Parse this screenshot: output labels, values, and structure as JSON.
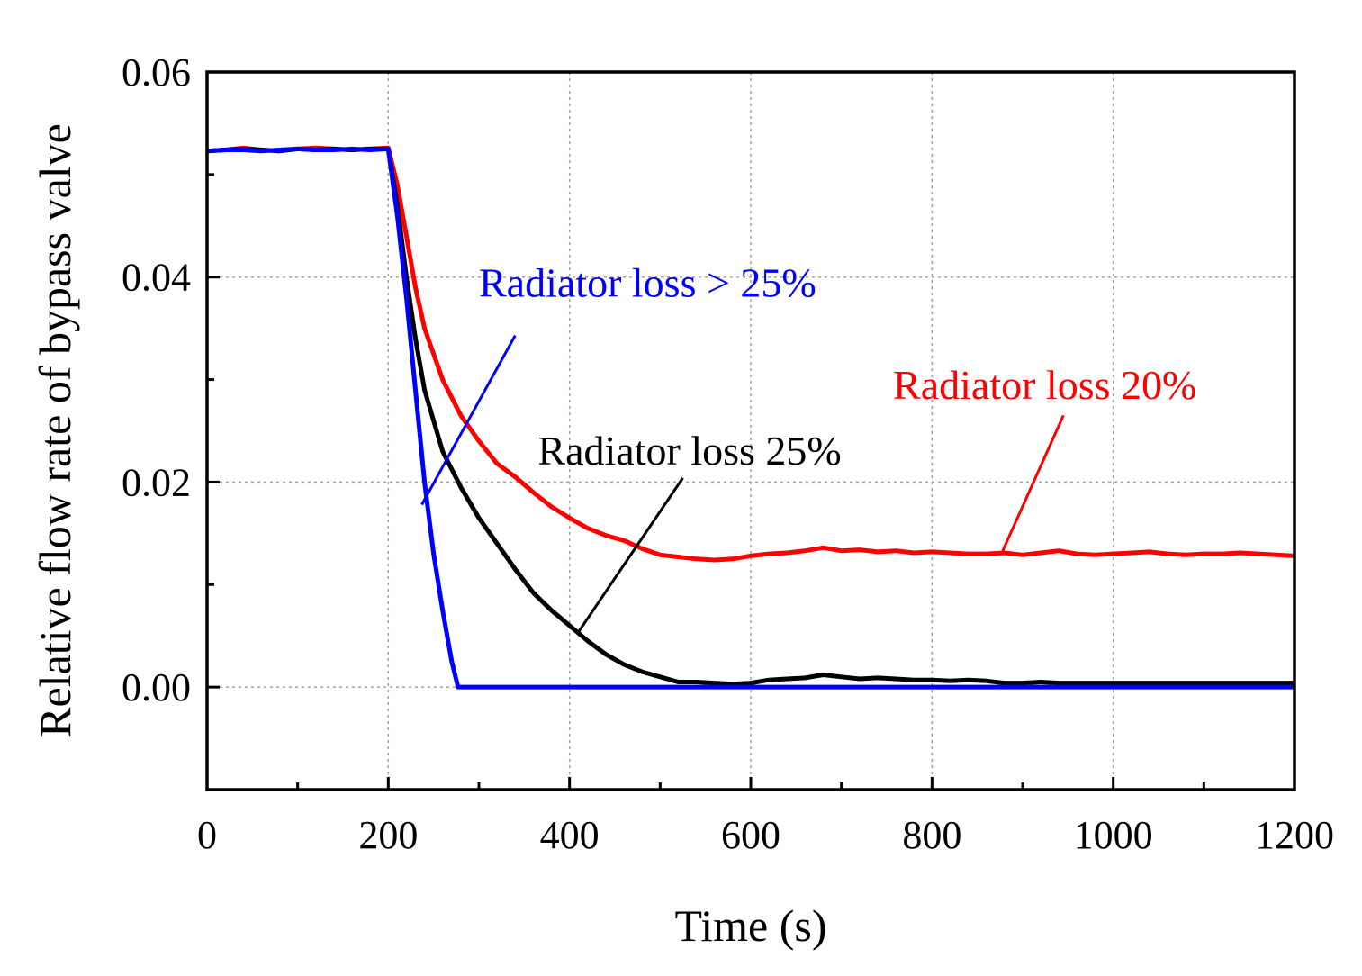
{
  "chart_data": {
    "type": "line",
    "title": "",
    "xlabel": "Time (s)",
    "ylabel": "Relative flow rate of bypass valve",
    "xlim": [
      0,
      1200
    ],
    "ylim": [
      -0.01,
      0.06
    ],
    "xticks": [
      0,
      200,
      400,
      600,
      800,
      1000,
      1200
    ],
    "xtick_labels": [
      "0",
      "200",
      "400",
      "600",
      "800",
      "1000",
      "1200"
    ],
    "yticks": [
      0.0,
      0.02,
      0.04,
      0.06
    ],
    "ytick_labels": [
      "0.00",
      "0.02",
      "0.04",
      "0.06"
    ],
    "grid": true,
    "legend": "none",
    "series": [
      {
        "name": "Radiator loss 20%",
        "color": "#ff0000",
        "x": [
          0,
          20,
          40,
          60,
          80,
          100,
          120,
          140,
          160,
          180,
          200,
          210,
          220,
          230,
          240,
          260,
          280,
          300,
          320,
          340,
          360,
          380,
          400,
          420,
          440,
          460,
          480,
          500,
          520,
          540,
          560,
          580,
          600,
          620,
          640,
          660,
          680,
          700,
          720,
          740,
          760,
          780,
          800,
          820,
          840,
          860,
          880,
          900,
          920,
          940,
          960,
          980,
          1000,
          1020,
          1040,
          1060,
          1080,
          1100,
          1120,
          1140,
          1160,
          1180,
          1200
        ],
        "y": [
          0.0523,
          0.0524,
          0.0526,
          0.0524,
          0.0523,
          0.0525,
          0.0526,
          0.0525,
          0.0524,
          0.0525,
          0.0526,
          0.049,
          0.044,
          0.039,
          0.035,
          0.03,
          0.0265,
          0.024,
          0.0218,
          0.0205,
          0.019,
          0.0176,
          0.0165,
          0.0155,
          0.0148,
          0.0143,
          0.0135,
          0.0129,
          0.0127,
          0.0125,
          0.0124,
          0.0125,
          0.0128,
          0.013,
          0.0131,
          0.0133,
          0.0136,
          0.0133,
          0.0134,
          0.0132,
          0.0133,
          0.0131,
          0.0132,
          0.0131,
          0.013,
          0.013,
          0.0131,
          0.0129,
          0.0131,
          0.0133,
          0.013,
          0.0129,
          0.013,
          0.0131,
          0.0132,
          0.013,
          0.0129,
          0.013,
          0.013,
          0.0131,
          0.013,
          0.0129,
          0.0128
        ]
      },
      {
        "name": "Radiator loss 25%",
        "color": "#000000",
        "x": [
          0,
          20,
          40,
          60,
          80,
          100,
          120,
          140,
          160,
          180,
          200,
          210,
          220,
          230,
          240,
          260,
          280,
          300,
          320,
          340,
          360,
          380,
          400,
          420,
          440,
          460,
          480,
          500,
          520,
          540,
          560,
          580,
          600,
          620,
          640,
          660,
          680,
          700,
          720,
          740,
          760,
          780,
          800,
          820,
          840,
          860,
          880,
          900,
          920,
          940,
          960,
          980,
          1000,
          1020,
          1040,
          1060,
          1080,
          1100,
          1120,
          1140,
          1160,
          1180,
          1200
        ],
        "y": [
          0.0523,
          0.0524,
          0.0525,
          0.0524,
          0.0523,
          0.0525,
          0.0524,
          0.0525,
          0.0524,
          0.0525,
          0.0525,
          0.047,
          0.04,
          0.034,
          0.029,
          0.023,
          0.0195,
          0.0165,
          0.014,
          0.0115,
          0.0092,
          0.0075,
          0.006,
          0.0045,
          0.0032,
          0.0022,
          0.0015,
          0.001,
          0.0005,
          0.0005,
          0.0004,
          0.0003,
          0.0004,
          0.0007,
          0.0008,
          0.0009,
          0.0012,
          0.001,
          0.0008,
          0.0009,
          0.0008,
          0.0007,
          0.0007,
          0.0006,
          0.0007,
          0.0006,
          0.0004,
          0.0004,
          0.0005,
          0.0004,
          0.0004,
          0.0004,
          0.0004,
          0.0004,
          0.0004,
          0.0004,
          0.0004,
          0.0004,
          0.0004,
          0.0004,
          0.0004,
          0.0004,
          0.0004
        ]
      },
      {
        "name": "Radiator loss > 25%",
        "color": "#0000ff",
        "x": [
          0,
          20,
          40,
          60,
          80,
          100,
          120,
          140,
          160,
          180,
          200,
          210,
          220,
          230,
          240,
          250,
          260,
          270,
          277,
          300,
          400,
          500,
          600,
          700,
          800,
          900,
          1000,
          1100,
          1200
        ],
        "y": [
          0.0523,
          0.0524,
          0.0524,
          0.0523,
          0.0524,
          0.0525,
          0.0524,
          0.0524,
          0.0525,
          0.0524,
          0.0525,
          0.046,
          0.038,
          0.029,
          0.02,
          0.013,
          0.0075,
          0.0025,
          0.0,
          0.0,
          0.0,
          0.0,
          0.0,
          0.0,
          0.0,
          0.0,
          0.0,
          0.0,
          0.0
        ]
      }
    ],
    "annotations": [
      {
        "text": "Radiator loss > 25%",
        "color": "#0000ff",
        "x": 300,
        "y": 0.0381,
        "line_from": [
          340,
          0.0343
        ],
        "line_to": [
          237,
          0.0178
        ]
      },
      {
        "text": "Radiator loss 20%",
        "color": "#ff0000",
        "x": 757,
        "y": 0.0281,
        "line_from": [
          945,
          0.0265
        ],
        "line_to": [
          878,
          0.0133
        ]
      },
      {
        "text": "Radiator loss 25%",
        "color": "#000000",
        "x": 365,
        "y": 0.0217,
        "line_from": [
          525,
          0.0204
        ],
        "line_to": [
          410,
          0.0054
        ]
      }
    ]
  }
}
